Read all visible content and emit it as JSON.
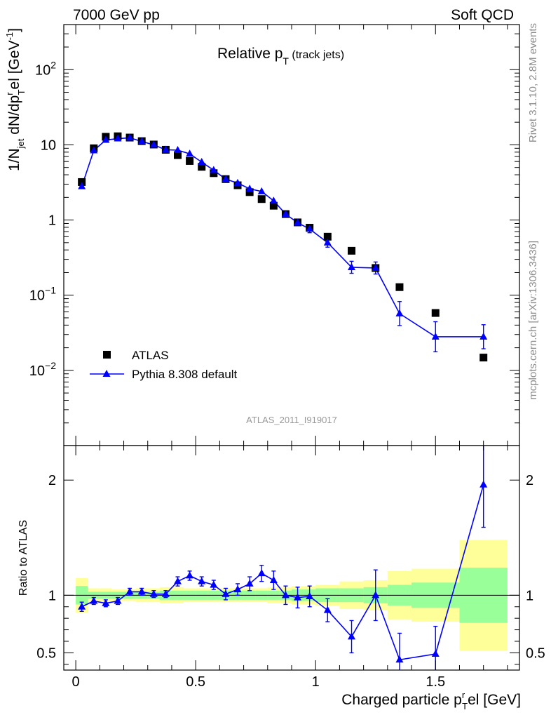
{
  "header": {
    "left": "7000 GeV pp",
    "right": "Soft QCD"
  },
  "side_labels": {
    "rivet": "Rivet 3.1.10,  2.8M events",
    "mcplots": "mcplots.cern.ch [arXiv:1306.3436]"
  },
  "plot_title": {
    "main": "Relative p",
    "sub": "T",
    "suffix": " (track jets)"
  },
  "analysis_id": "ATLAS_2011_I919017",
  "legend": [
    {
      "name": "ATLAS",
      "marker": "square",
      "color": "#000000"
    },
    {
      "name": "Pythia 8.308 default",
      "marker": "triangle",
      "color": "#0000ff"
    }
  ],
  "axes": {
    "top_ylabel": "1/N_jet dN/dp_T^rel [GeV^-1]",
    "bottom_ylabel": "Ratio to ATLAS",
    "xlabel": "Charged particle p_T^rel [GeV]",
    "xlim": [
      -0.05,
      1.85
    ],
    "top_ylim_log10": [
      -3.0,
      2.6
    ],
    "bottom_ylim": [
      0.35,
      2.3
    ],
    "x_major_ticks": [
      0,
      0.5,
      1,
      1.5
    ],
    "x_tick_labels": [
      "0",
      "0.5",
      "1",
      "1.5"
    ],
    "top_y_ticks": [
      {
        "log10": 2,
        "label": "10",
        "exp": "2"
      },
      {
        "log10": 1,
        "label": "10",
        "exp": ""
      },
      {
        "log10": 0,
        "label": "1",
        "exp": ""
      },
      {
        "log10": -1,
        "label": "10",
        "exp": "−1"
      },
      {
        "log10": -2,
        "label": "10",
        "exp": "−2"
      }
    ],
    "bottom_y_ticks": [
      {
        "value": 0.5,
        "label": "0.5"
      },
      {
        "value": 1,
        "label": "1"
      },
      {
        "value": 2,
        "label": "2"
      }
    ]
  },
  "chart_data": {
    "type": "line",
    "title": "Relative pT (track jets)",
    "xlabel": "Charged particle pT rel [GeV]",
    "ylabel": "1/Njet dN/dpT rel [GeV^-1]",
    "yscale": "log",
    "series": [
      {
        "name": "ATLAS",
        "style": "markers",
        "x": [
          0.025,
          0.075,
          0.125,
          0.175,
          0.225,
          0.275,
          0.325,
          0.375,
          0.425,
          0.475,
          0.525,
          0.575,
          0.625,
          0.675,
          0.725,
          0.775,
          0.825,
          0.875,
          0.925,
          0.975,
          1.05,
          1.15,
          1.25,
          1.35,
          1.5,
          1.7
        ],
        "y": [
          3.2,
          9.0,
          12.8,
          13.0,
          12.5,
          11.2,
          10.1,
          8.6,
          7.3,
          6.1,
          5.1,
          4.2,
          3.5,
          2.9,
          2.35,
          1.9,
          1.55,
          1.2,
          0.93,
          0.79,
          0.6,
          0.39,
          0.23,
          0.128,
          0.058,
          0.0148
        ]
      },
      {
        "name": "Pythia 8.308 default",
        "style": "line+triangles",
        "x": [
          0.025,
          0.075,
          0.125,
          0.175,
          0.225,
          0.275,
          0.325,
          0.375,
          0.425,
          0.475,
          0.525,
          0.575,
          0.625,
          0.675,
          0.725,
          0.775,
          0.825,
          0.875,
          0.925,
          0.975,
          1.05,
          1.15,
          1.25,
          1.35,
          1.5,
          1.7
        ],
        "y": [
          2.8,
          8.4,
          11.6,
          12.1,
          12.4,
          11.1,
          10.0,
          8.6,
          8.5,
          7.6,
          5.9,
          4.6,
          3.5,
          3.1,
          2.6,
          2.4,
          1.8,
          1.2,
          0.92,
          0.76,
          0.5,
          0.235,
          0.23,
          0.057,
          0.028,
          0.028
        ],
        "y_err_log10": [
          0,
          0,
          0,
          0,
          0,
          0,
          0,
          0,
          0,
          0,
          0,
          0,
          0,
          0,
          0,
          0,
          0,
          0,
          0,
          0.05,
          0.06,
          0.08,
          0.08,
          0.16,
          0.2,
          0.16
        ]
      }
    ],
    "ratio": {
      "ylabel": "Ratio to ATLAS",
      "ylim": [
        0.35,
        2.3
      ],
      "x": [
        0.025,
        0.075,
        0.125,
        0.175,
        0.225,
        0.275,
        0.325,
        0.375,
        0.425,
        0.475,
        0.525,
        0.575,
        0.625,
        0.675,
        0.725,
        0.775,
        0.825,
        0.875,
        0.925,
        0.975,
        1.05,
        1.15,
        1.25,
        1.35,
        1.5,
        1.7
      ],
      "values": [
        0.9,
        0.95,
        0.93,
        0.95,
        1.03,
        1.03,
        1.01,
        1.01,
        1.12,
        1.17,
        1.12,
        1.09,
        1.01,
        1.05,
        1.1,
        1.19,
        1.13,
        1.0,
        0.98,
        0.99,
        0.87,
        0.64,
        1.0,
        0.44,
        0.49,
        1.96
      ],
      "errors": [
        0.04,
        0.03,
        0.03,
        0.03,
        0.03,
        0.03,
        0.03,
        0.03,
        0.04,
        0.04,
        0.04,
        0.04,
        0.05,
        0.05,
        0.06,
        0.07,
        0.08,
        0.08,
        0.09,
        0.09,
        0.1,
        0.14,
        0.22,
        0.23,
        0.24,
        0.37
      ],
      "bins": [
        [
          0.0,
          0.05
        ],
        [
          0.05,
          0.1
        ],
        [
          0.1,
          0.15
        ],
        [
          0.15,
          0.2
        ],
        [
          0.2,
          0.25
        ],
        [
          0.25,
          0.3
        ],
        [
          0.3,
          0.35
        ],
        [
          0.35,
          0.4
        ],
        [
          0.4,
          0.45
        ],
        [
          0.45,
          0.5
        ],
        [
          0.5,
          0.55
        ],
        [
          0.55,
          0.6
        ],
        [
          0.6,
          0.65
        ],
        [
          0.65,
          0.7
        ],
        [
          0.7,
          0.75
        ],
        [
          0.75,
          0.8
        ],
        [
          0.8,
          0.85
        ],
        [
          0.85,
          0.9
        ],
        [
          0.9,
          0.95
        ],
        [
          0.95,
          1.0
        ],
        [
          1.0,
          1.1
        ],
        [
          1.1,
          1.2
        ],
        [
          1.2,
          1.3
        ],
        [
          1.3,
          1.4
        ],
        [
          1.4,
          1.6
        ],
        [
          1.6,
          1.8
        ]
      ],
      "band_green": [
        0.08,
        0.03,
        0.03,
        0.03,
        0.03,
        0.03,
        0.03,
        0.04,
        0.04,
        0.04,
        0.04,
        0.04,
        0.04,
        0.04,
        0.04,
        0.04,
        0.04,
        0.04,
        0.05,
        0.05,
        0.06,
        0.06,
        0.07,
        0.09,
        0.11,
        0.24
      ],
      "band_yellow": [
        0.15,
        0.06,
        0.06,
        0.05,
        0.05,
        0.06,
        0.06,
        0.07,
        0.07,
        0.06,
        0.06,
        0.06,
        0.06,
        0.06,
        0.06,
        0.06,
        0.07,
        0.07,
        0.08,
        0.08,
        0.09,
        0.12,
        0.13,
        0.21,
        0.23,
        0.48
      ]
    },
    "colors": {
      "data": "#000000",
      "mc": "#0000ff",
      "band_inner": "#99ff99",
      "band_outer": "#ffff99"
    }
  }
}
